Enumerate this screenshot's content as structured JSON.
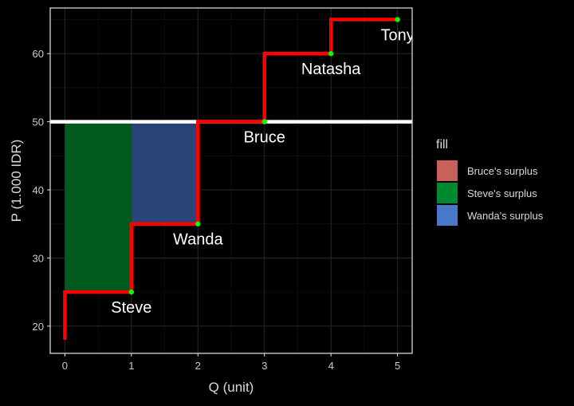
{
  "chart_data": {
    "type": "step",
    "xlabel": "Q (unit)",
    "ylabel": "P (1.000 IDR)",
    "xlim": [
      -0.22,
      5.22
    ],
    "ylim": [
      16.0,
      66.7
    ],
    "x_ticks": [
      0,
      1,
      2,
      3,
      4,
      5
    ],
    "y_ticks": [
      20,
      30,
      40,
      50,
      60
    ],
    "supply_step": {
      "color": "#ff0000",
      "points": [
        [
          0,
          18
        ],
        [
          0,
          25
        ],
        [
          1,
          25
        ],
        [
          1,
          35
        ],
        [
          2,
          35
        ],
        [
          2,
          50
        ],
        [
          3,
          50
        ],
        [
          3,
          60
        ],
        [
          4,
          60
        ],
        [
          4,
          65
        ],
        [
          5,
          65
        ]
      ]
    },
    "price_line": {
      "y": 50,
      "color": "#ffffff"
    },
    "sellers": [
      {
        "label": "Steve",
        "x": 1,
        "y": 25
      },
      {
        "label": "Wanda",
        "x": 2,
        "y": 35
      },
      {
        "label": "Bruce",
        "x": 3,
        "y": 50
      },
      {
        "label": "Natasha",
        "x": 4,
        "y": 60
      },
      {
        "label": "Tony",
        "x": 5,
        "y": 65
      }
    ],
    "surplus_areas": [
      {
        "series": "Steve's surplus",
        "x0": 0,
        "x1": 1,
        "y0": 25,
        "y1": 50,
        "color": "#005a1e"
      },
      {
        "series": "Wanda's surplus",
        "x0": 1,
        "x1": 2,
        "y0": 35,
        "y1": 50,
        "color": "#2b4477"
      }
    ],
    "legend": {
      "title": "fill",
      "position": "right",
      "entries": [
        {
          "label": "Bruce's surplus",
          "color": "#c8605c"
        },
        {
          "label": "Steve's surplus",
          "color": "#008a30"
        },
        {
          "label": "Wanda's surplus",
          "color": "#4a78c8"
        }
      ]
    },
    "grid": true,
    "colors": {
      "background": "#000000",
      "panel_border": "#e6e6e6",
      "grid": "#262626",
      "text": "#d9d9d9",
      "point": "#00ff00"
    }
  }
}
